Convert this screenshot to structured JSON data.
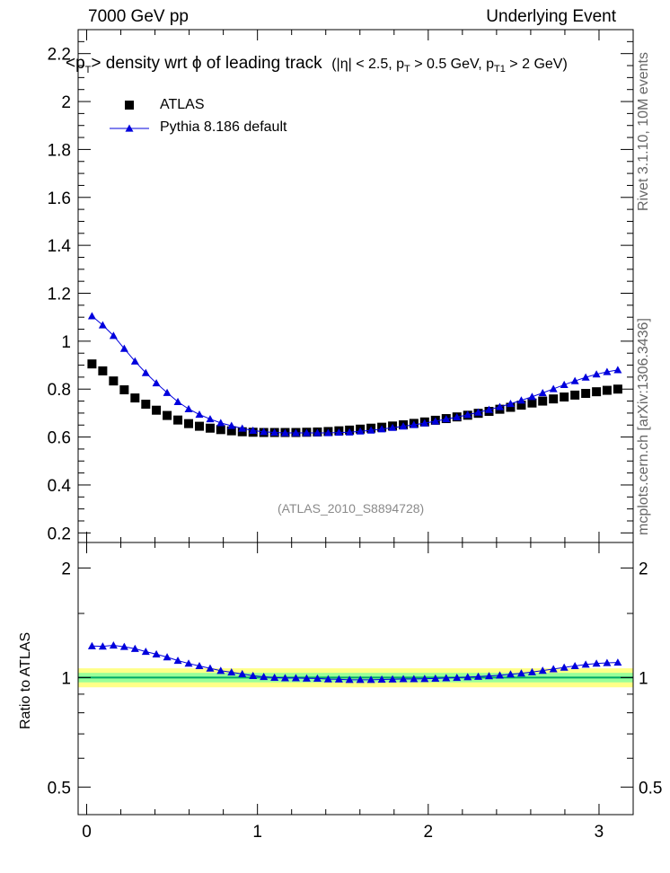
{
  "header": {
    "left": "7000 GeV pp",
    "right": "Underlying Event"
  },
  "side_labels": {
    "rivet": "Rivet 3.1.10, 10M events",
    "mcplots": "mcplots.cern.ch [arXiv:1306.3436]"
  },
  "title": {
    "main_pre": "<p",
    "main_sub": "T",
    "main_post": "> density wrt  ϕ of leading track",
    "cuts_a": "(|η| < 2.5, p",
    "cuts_sub1": "T",
    "cuts_b": " > 0.5 GeV, p",
    "cuts_sub2": "T1",
    "cuts_c": " > 2 GeV)"
  },
  "watermark": "(ATLAS_2010_S8894728)",
  "ratio_ylabel": "Ratio to ATLAS",
  "colors": {
    "data": "#000000",
    "mc": "#0000dd",
    "band_inner": "#99ff99",
    "band_outer": "#ffff88",
    "ratio_line": "#00aa66"
  },
  "chart_data": [
    {
      "type": "scatter",
      "panel": "main",
      "xlim": [
        -0.05,
        3.2
      ],
      "ylim": [
        0.16,
        2.3
      ],
      "yticks": [
        0.2,
        0.4,
        0.6,
        0.8,
        1,
        1.2,
        1.4,
        1.6,
        1.8,
        2,
        2.2
      ],
      "ytick_labels": [
        "0.2",
        "0.4",
        "0.6",
        "0.8",
        "1",
        "1.2",
        "1.4",
        "1.6",
        "1.8",
        "2",
        "2.2"
      ],
      "x": [
        0.031,
        0.094,
        0.157,
        0.22,
        0.283,
        0.346,
        0.408,
        0.471,
        0.534,
        0.597,
        0.66,
        0.723,
        0.785,
        0.848,
        0.911,
        0.974,
        1.037,
        1.1,
        1.162,
        1.225,
        1.288,
        1.351,
        1.414,
        1.477,
        1.539,
        1.602,
        1.665,
        1.728,
        1.791,
        1.854,
        1.916,
        1.979,
        2.042,
        2.105,
        2.168,
        2.231,
        2.293,
        2.356,
        2.419,
        2.482,
        2.545,
        2.608,
        2.67,
        2.733,
        2.796,
        2.859,
        2.922,
        2.985,
        3.047,
        3.11
      ],
      "series": [
        {
          "name": "ATLAS",
          "marker": "square",
          "values": [
            0.905,
            0.876,
            0.834,
            0.797,
            0.763,
            0.737,
            0.712,
            0.69,
            0.671,
            0.656,
            0.645,
            0.637,
            0.631,
            0.626,
            0.622,
            0.62,
            0.619,
            0.619,
            0.619,
            0.619,
            0.62,
            0.621,
            0.623,
            0.626,
            0.629,
            0.633,
            0.637,
            0.641,
            0.646,
            0.651,
            0.657,
            0.663,
            0.67,
            0.677,
            0.684,
            0.691,
            0.699,
            0.707,
            0.716,
            0.724,
            0.733,
            0.742,
            0.75,
            0.759,
            0.767,
            0.775,
            0.782,
            0.789,
            0.795,
            0.8
          ]
        },
        {
          "name": "Pythia 8.186 default",
          "marker": "triangle",
          "values": [
            1.105,
            1.067,
            1.023,
            0.969,
            0.916,
            0.868,
            0.825,
            0.785,
            0.747,
            0.717,
            0.694,
            0.675,
            0.659,
            0.647,
            0.636,
            0.627,
            0.622,
            0.619,
            0.617,
            0.617,
            0.617,
            0.617,
            0.617,
            0.619,
            0.62,
            0.624,
            0.628,
            0.633,
            0.639,
            0.645,
            0.651,
            0.658,
            0.666,
            0.675,
            0.683,
            0.693,
            0.703,
            0.714,
            0.726,
            0.739,
            0.753,
            0.768,
            0.784,
            0.801,
            0.818,
            0.834,
            0.849,
            0.862,
            0.872,
            0.88
          ]
        }
      ]
    },
    {
      "type": "scatter",
      "panel": "ratio",
      "ylabel": "Ratio to ATLAS",
      "xlim": [
        -0.05,
        3.2
      ],
      "ylim": [
        0.42,
        2.35
      ],
      "yscale": "log",
      "xticks": [
        0,
        1,
        2,
        3
      ],
      "xtick_labels": [
        "0",
        "1",
        "2",
        "3"
      ],
      "yticks": [
        0.5,
        1,
        2
      ],
      "ytick_labels": [
        "0.5",
        "1",
        "2"
      ],
      "band_inner": [
        0.97,
        1.03
      ],
      "band_outer": [
        0.94,
        1.06
      ],
      "series": [
        {
          "name": "Pythia 8.186 default",
          "marker": "triangle",
          "values": [
            1.221,
            1.218,
            1.226,
            1.215,
            1.2,
            1.178,
            1.159,
            1.138,
            1.113,
            1.093,
            1.076,
            1.06,
            1.044,
            1.034,
            1.023,
            1.011,
            1.005,
            1,
            0.997,
            0.997,
            0.995,
            0.994,
            0.99,
            0.989,
            0.986,
            0.986,
            0.986,
            0.988,
            0.989,
            0.991,
            0.991,
            0.992,
            0.994,
            0.997,
            0.999,
            1.003,
            1.006,
            1.01,
            1.014,
            1.021,
            1.027,
            1.035,
            1.045,
            1.055,
            1.066,
            1.076,
            1.086,
            1.093,
            1.097,
            1.1
          ]
        }
      ]
    }
  ]
}
